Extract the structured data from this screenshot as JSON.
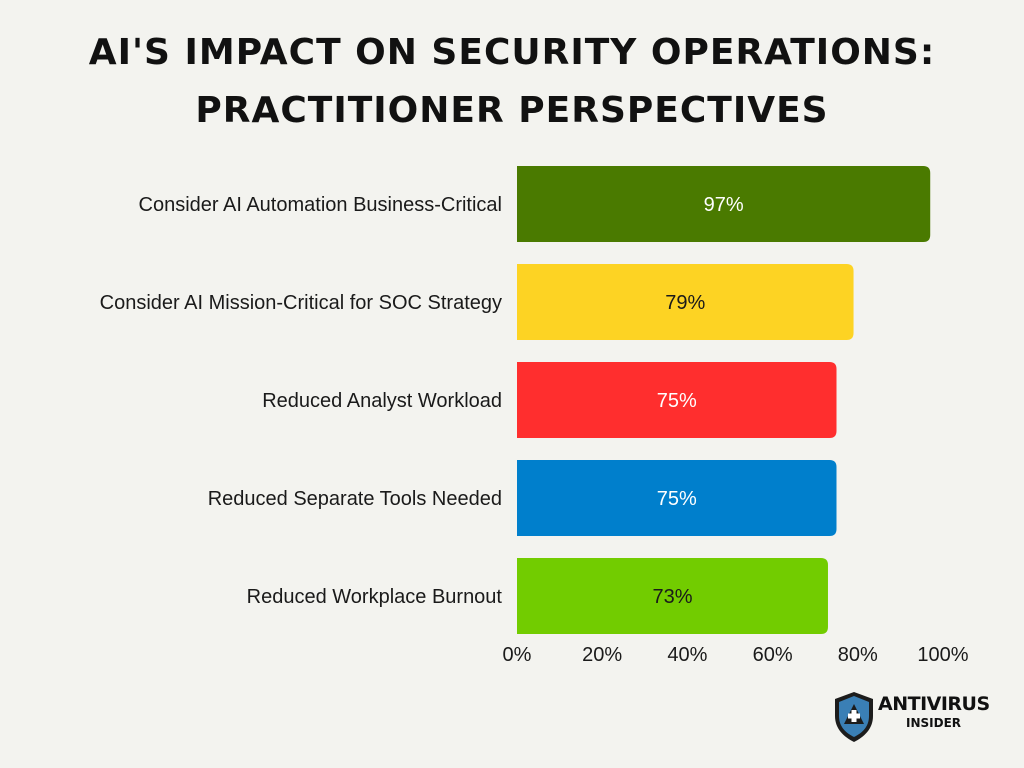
{
  "title": {
    "line1": "AI'S IMPACT ON SECURITY OPERATIONS:",
    "line2": "PRACTITIONER PERSPECTIVES"
  },
  "chart_data": {
    "type": "bar",
    "orientation": "horizontal",
    "categories": [
      "Consider AI Automation Business-Critical",
      "Consider AI Mission-Critical for SOC Strategy",
      "Reduced Analyst Workload",
      "Reduced Separate Tools Needed",
      "Reduced Workplace Burnout"
    ],
    "values": [
      97,
      79,
      75,
      75,
      73
    ],
    "value_labels": [
      "97%",
      "79%",
      "75%",
      "75%",
      "73%"
    ],
    "colors": [
      "#4a7a00",
      "#fdd323",
      "#ff2e2e",
      "#007fcc",
      "#72cc00"
    ],
    "label_colors": [
      "#ffffff",
      "#1a1a1a",
      "#ffffff",
      "#ffffff",
      "#1a1a1a"
    ],
    "xlim": [
      0,
      100
    ],
    "x_ticks": [
      0,
      20,
      40,
      60,
      80,
      100
    ],
    "x_tick_labels": [
      "0%",
      "20%",
      "40%",
      "60%",
      "80%",
      "100%"
    ],
    "grid": false,
    "legend": "none"
  },
  "logo": {
    "name": "ANTIVIRUS",
    "sub": "INSIDER",
    "shield_color": "#3a7fb5"
  }
}
